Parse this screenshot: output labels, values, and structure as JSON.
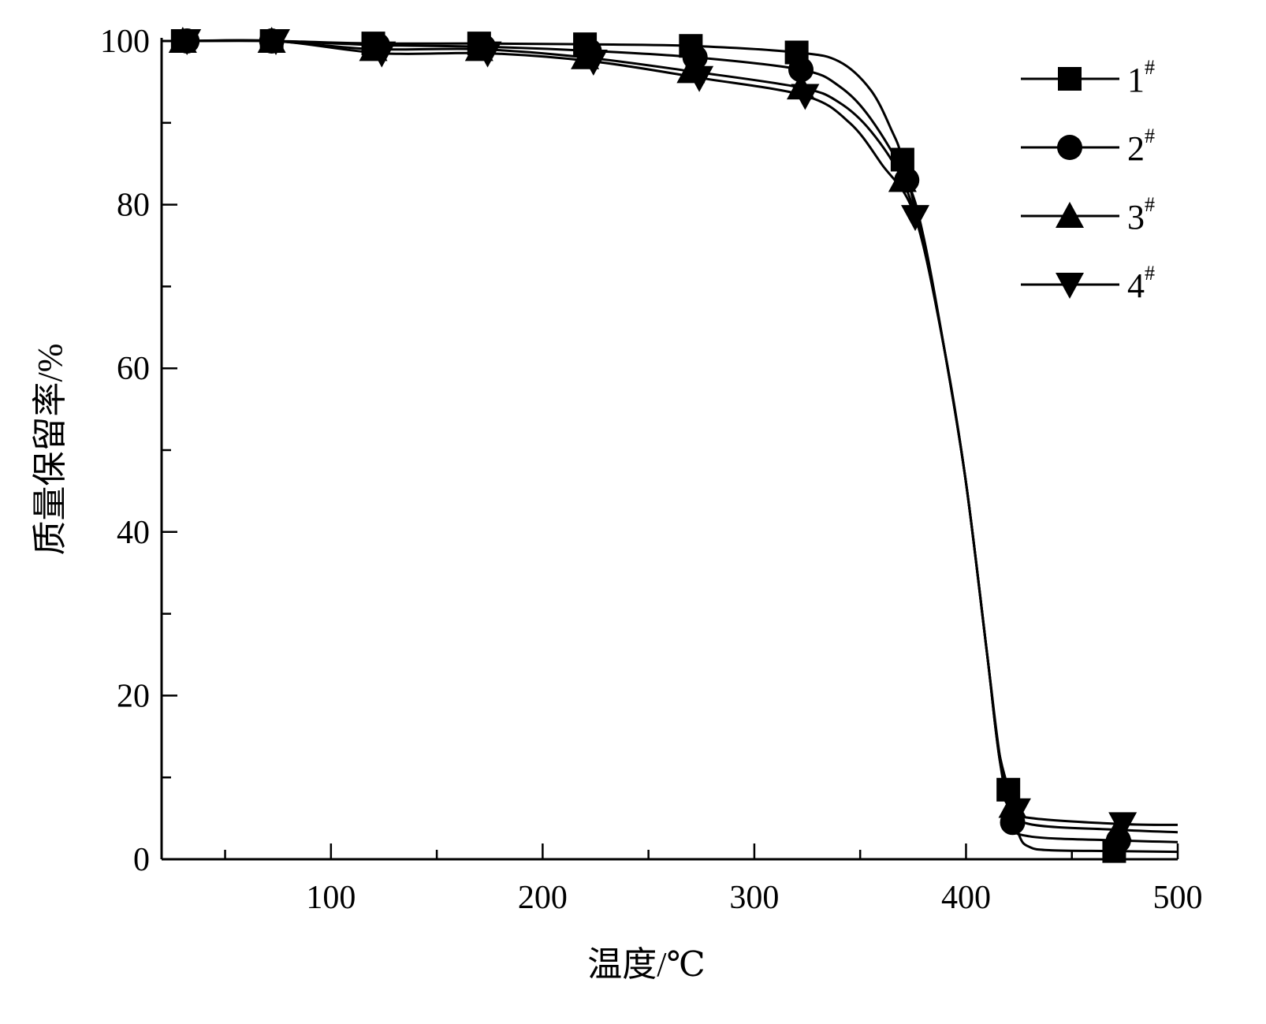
{
  "chart_data": {
    "type": "line",
    "title": "",
    "xlabel": "温度/℃",
    "ylabel": "质量保留率/%",
    "xlim": [
      20,
      500
    ],
    "ylim": [
      0,
      100
    ],
    "xticks": [
      100,
      200,
      300,
      400,
      500
    ],
    "yticks": [
      0,
      20,
      40,
      60,
      80,
      100
    ],
    "xtick_labels": [
      "100",
      "200",
      "300",
      "400",
      "500"
    ],
    "ytick_labels": [
      "0",
      "20",
      "40",
      "60",
      "80",
      "100"
    ],
    "x_minor_step": 50,
    "y_minor_step": 10,
    "grid": false,
    "legend_position": "top-right",
    "series": [
      {
        "name": "1",
        "sup": "#",
        "marker": "square",
        "x": [
          20,
          30,
          72,
          120,
          170,
          220,
          270,
          320,
          340,
          355,
          365,
          370,
          380,
          390,
          400,
          410,
          415,
          420,
          425,
          430,
          440,
          470,
          500
        ],
        "y": [
          100,
          100,
          100,
          99.7,
          99.7,
          99.6,
          99.4,
          98.6,
          97.5,
          94,
          89,
          85.5,
          75,
          62,
          46,
          25,
          14,
          8.5,
          3,
          1.5,
          1.1,
          1.0,
          0.9
        ],
        "marker_x": [
          30,
          72,
          120,
          170,
          220,
          270,
          320,
          370,
          420,
          470
        ]
      },
      {
        "name": "2",
        "sup": "#",
        "marker": "circle",
        "x": [
          20,
          32,
          72,
          122,
          172,
          222,
          272,
          322,
          340,
          355,
          372,
          380,
          390,
          400,
          410,
          416,
          422,
          430,
          472,
          500
        ],
        "y": [
          100,
          100,
          100,
          99.5,
          99.3,
          98.8,
          98,
          96.5,
          94.5,
          90.5,
          83,
          76,
          62,
          46,
          25,
          12,
          4.5,
          2.8,
          2.3,
          2.1
        ],
        "marker_x": [
          32,
          72,
          122,
          172,
          222,
          272,
          322,
          372,
          422,
          472
        ]
      },
      {
        "name": "3",
        "sup": "#",
        "marker": "triangle-up",
        "x": [
          20,
          30,
          72,
          120,
          170,
          220,
          270,
          322,
          340,
          355,
          370,
          380,
          390,
          400,
          410,
          416,
          422,
          430,
          472,
          500
        ],
        "y": [
          100,
          100,
          100,
          99,
          99,
          98,
          96.3,
          94.3,
          92.5,
          89,
          83,
          75,
          62,
          46,
          25,
          12,
          6.5,
          4.3,
          3.6,
          3.3
        ],
        "marker_x": [
          30,
          72,
          120,
          170,
          220,
          270,
          322,
          370,
          422,
          472
        ]
      },
      {
        "name": "4",
        "sup": "#",
        "marker": "triangle-down",
        "x": [
          20,
          32,
          74,
          124,
          174,
          224,
          274,
          324,
          345,
          360,
          376,
          390,
          400,
          410,
          417,
          424,
          432,
          474,
          500
        ],
        "y": [
          100,
          100,
          100,
          98.5,
          98.5,
          97.5,
          95.5,
          93.3,
          90,
          85,
          78.5,
          62,
          46,
          25,
          11,
          6,
          5,
          4.3,
          4.2
        ],
        "marker_x": [
          32,
          74,
          124,
          174,
          224,
          274,
          324,
          376,
          424,
          474
        ]
      }
    ]
  }
}
